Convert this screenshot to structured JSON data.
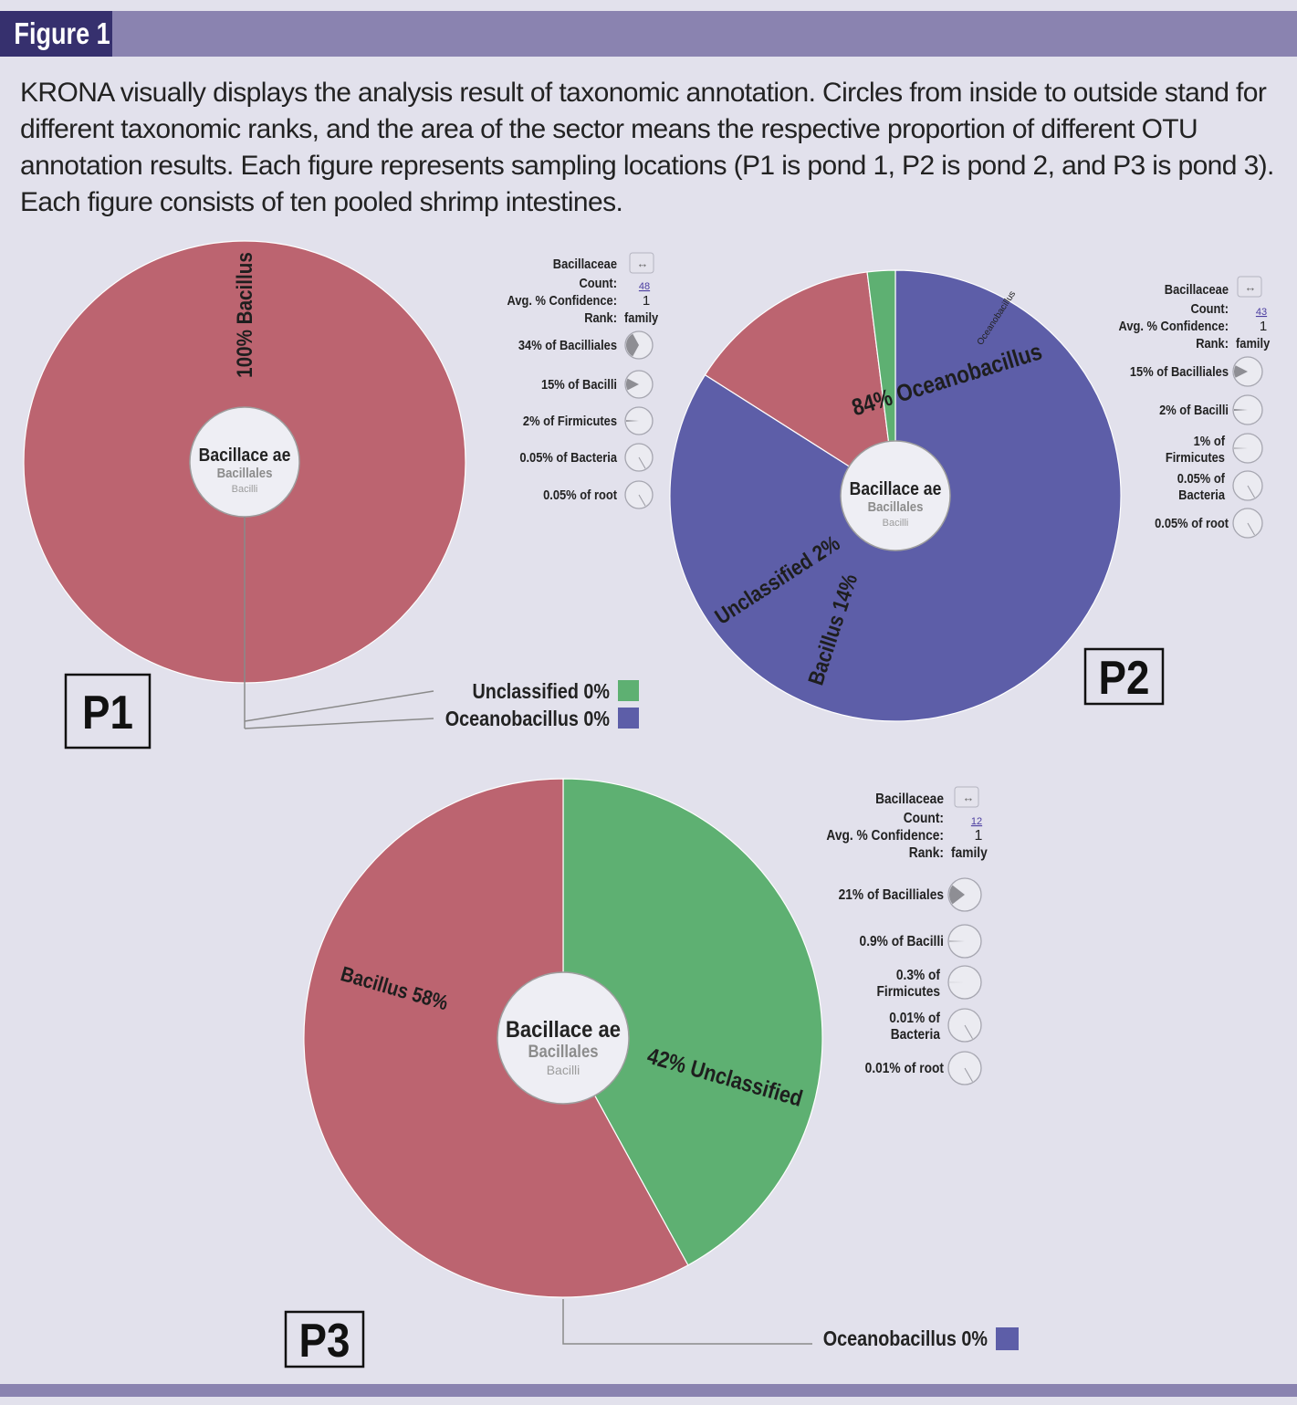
{
  "figure_label": "Figure 1",
  "caption": "KRONA visually displays the analysis result of taxonomic annotation. Circles from inside to outside stand for different taxonomic ranks, and the area of the sector means the respective proportion of different OTU annotation results. Each figure represents sampling locations (P1 is pond 1, P2 is pond 2, and P3 is pond 3). Each figure consists of ten pooled shrimp intestines.",
  "colors": {
    "Bacillus": "#bc6470",
    "Oceanobacillus": "#5d5ea8",
    "Unclassified": "#5eb072",
    "background": "#e2e1ec",
    "header": "#36306e",
    "band": "#8a83b0"
  },
  "chart_data": [
    {
      "type": "pie",
      "panel": "P1",
      "center": {
        "title": "Bacillace ae",
        "sub1": "Bacillales",
        "sub2": "Bacilli"
      },
      "slices": [
        {
          "name": "Bacillus",
          "value": 100,
          "label": "100% Bacillus"
        },
        {
          "name": "Unclassified",
          "value": 0,
          "label": "Unclassified 0%"
        },
        {
          "name": "Oceanobacillus",
          "value": 0,
          "label": "Oceanobacillus 0%"
        }
      ],
      "info": {
        "name": "Bacillaceae",
        "count_label": "Count:",
        "count": "48",
        "confidence_label": "Avg. % Confidence:",
        "confidence": "1",
        "rank_label": "Rank:",
        "rank": "family",
        "ancestors": [
          {
            "text": "34% of Bacilliales",
            "fraction": 0.34
          },
          {
            "text": "15% of Bacilli",
            "fraction": 0.15
          },
          {
            "text": "2% of Firmicutes",
            "fraction": 0.02
          },
          {
            "text": "0.05% of Bacteria",
            "fraction": 0.0005
          },
          {
            "text": "0.05% of root",
            "fraction": 0.0005
          }
        ]
      }
    },
    {
      "type": "pie",
      "panel": "P2",
      "center": {
        "title": "Bacillace ae",
        "sub1": "Bacillales",
        "sub2": "Bacilli"
      },
      "slices": [
        {
          "name": "Oceanobacillus",
          "value": 84,
          "label": "84% Oceanobacillus"
        },
        {
          "name": "Unclassified",
          "value": 2,
          "label": "Unclassified 2%"
        },
        {
          "name": "Bacillus",
          "value": 14,
          "label": "Bacillus 14%"
        }
      ],
      "extra_label": "Oceanobacillus",
      "info": {
        "name": "Bacillaceae",
        "count_label": "Count:",
        "count": "43",
        "confidence_label": "Avg. % Confidence:",
        "confidence": "1",
        "rank_label": "Rank:",
        "rank": "family",
        "ancestors": [
          {
            "text": "15% of Bacilliales",
            "fraction": 0.15
          },
          {
            "text": "2% of Bacilli",
            "fraction": 0.02
          },
          {
            "text": "1% of Firmicutes",
            "fraction": 0.01
          },
          {
            "text": "0.05% of Bacteria",
            "fraction": 0.0005
          },
          {
            "text": "0.05% of root",
            "fraction": 0.0005
          }
        ]
      }
    },
    {
      "type": "pie",
      "panel": "P3",
      "center": {
        "title": "Bacillace ae",
        "sub1": "Bacillales",
        "sub2": "Bacilli"
      },
      "slices": [
        {
          "name": "Unclassified",
          "value": 42,
          "label": "42% Unclassified"
        },
        {
          "name": "Bacillus",
          "value": 58,
          "label": "Bacillus 58%"
        },
        {
          "name": "Oceanobacillus",
          "value": 0,
          "label": "Oceanobacillus 0%"
        }
      ],
      "info": {
        "name": "Bacillaceae",
        "count_label": "Count:",
        "count": "12",
        "confidence_label": "Avg. % Confidence:",
        "confidence": "1",
        "rank_label": "Rank:",
        "rank": "family",
        "ancestors": [
          {
            "text": "21% of Bacilliales",
            "fraction": 0.21
          },
          {
            "text": "0.9% of Bacilli",
            "fraction": 0.009
          },
          {
            "text": "0.3% of Firmicutes",
            "fraction": 0.003
          },
          {
            "text": "0.01% of Bacteria",
            "fraction": 0.0001
          },
          {
            "text": "0.01% of root",
            "fraction": 0.0001
          }
        ]
      }
    }
  ]
}
